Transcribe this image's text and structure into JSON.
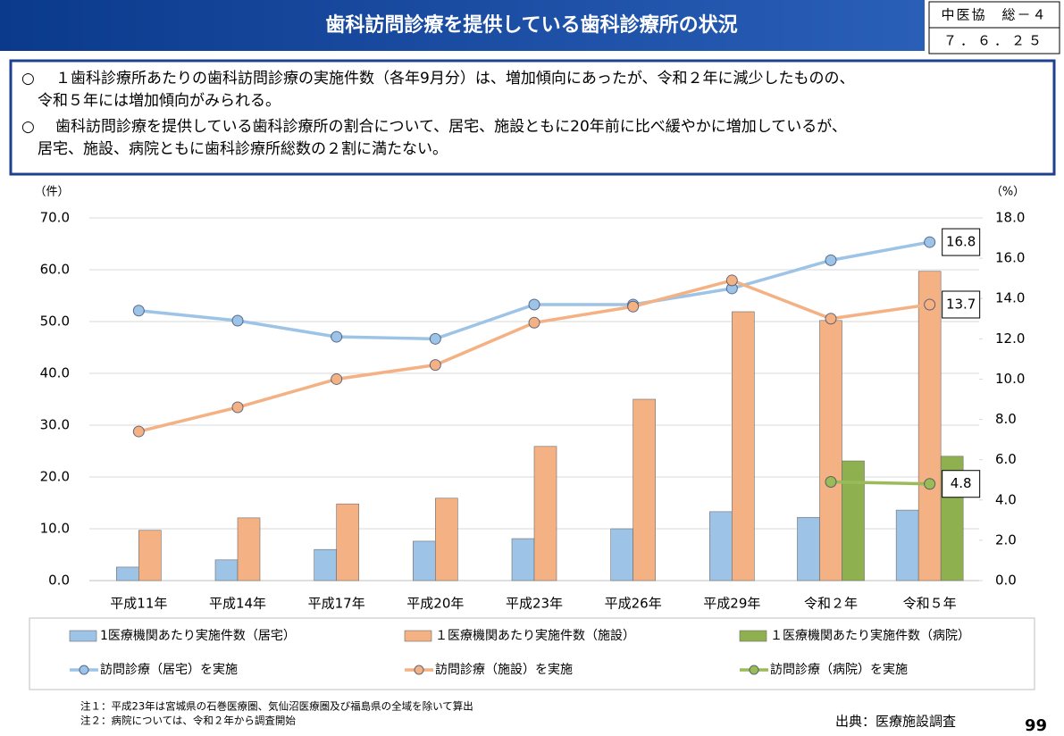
{
  "header": {
    "title": "歯科訪問診療を提供している歯科診療所の状況",
    "doc_id": "中医協　総－４",
    "date": "７．６．２５"
  },
  "bullets": [
    {
      "mark": "○",
      "lines": [
        "１歯科診療所あたりの歯科訪問診療の実施件数（各年9月分）は、増加傾向にあったが、令和２年に減少したものの、",
        "令和５年には増加傾向がみられる。"
      ]
    },
    {
      "mark": "○",
      "lines": [
        "歯科訪問診療を提供している歯科診療所の割合について、居宅、施設ともに20年前に比べ緩やかに増加しているが、",
        "居宅、施設、病院ともに歯科診療所総数の２割に満たない。"
      ]
    }
  ],
  "chart_data": {
    "type": "bar",
    "y_label": "（件）",
    "y2_label": "（%）",
    "categories": [
      "平成11年",
      "平成14年",
      "平成17年",
      "平成20年",
      "平成23年",
      "平成26年",
      "平成29年",
      "令和２年",
      "令和５年"
    ],
    "ylim": [
      0,
      70
    ],
    "yticks": [
      {
        "value": 0,
        "label": "0.0"
      },
      {
        "value": 10,
        "label": "10.0"
      },
      {
        "value": 20,
        "label": "20.0"
      },
      {
        "value": 30,
        "label": "30.0"
      },
      {
        "value": 40,
        "label": "40.0"
      },
      {
        "value": 50,
        "label": "50.0"
      },
      {
        "value": 60,
        "label": "60.0"
      },
      {
        "value": 70,
        "label": "70.0"
      }
    ],
    "y2lim": [
      0,
      18
    ],
    "y2ticks": [
      {
        "value": 0,
        "label": "0.0"
      },
      {
        "value": 2,
        "label": "2.0"
      },
      {
        "value": 4,
        "label": "4.0"
      },
      {
        "value": 6,
        "label": "6.0"
      },
      {
        "value": 8,
        "label": "8.0"
      },
      {
        "value": 10,
        "label": "10.0"
      },
      {
        "value": 12,
        "label": "12.0"
      },
      {
        "value": 14,
        "label": "14.0"
      },
      {
        "value": 16,
        "label": "16.0"
      },
      {
        "value": 18,
        "label": "18.0"
      }
    ],
    "grid": true,
    "series": [
      {
        "name": "1医療機関あたり実施件数（居宅）",
        "type": "bar",
        "axis": "y",
        "color": "#9dc3e6",
        "values": [
          2.6,
          4.0,
          6.0,
          7.6,
          8.1,
          10.0,
          13.3,
          12.2,
          13.6
        ]
      },
      {
        "name": "１医療機関あたり実施件数（施設）",
        "type": "bar",
        "axis": "y",
        "color": "#f4b183",
        "values": [
          9.7,
          12.1,
          14.8,
          15.9,
          25.9,
          35.0,
          51.9,
          50.2,
          59.7
        ]
      },
      {
        "name": "１医療機関あたり実施件数（病院）",
        "type": "bar",
        "axis": "y",
        "color": "#8fb04f",
        "values": [
          null,
          null,
          null,
          null,
          null,
          null,
          null,
          23.1,
          24.0
        ]
      },
      {
        "name": "訪問診療（居宅）を実施",
        "type": "line",
        "axis": "y2",
        "color": "#9dc3e6",
        "values": [
          13.4,
          12.9,
          12.1,
          12.0,
          13.7,
          13.7,
          14.5,
          15.9,
          16.8
        ]
      },
      {
        "name": "訪問診療（施設）を実施",
        "type": "line",
        "axis": "y2",
        "color": "#f4b183",
        "values": [
          7.4,
          8.6,
          10.0,
          10.7,
          12.8,
          13.6,
          14.9,
          13.0,
          13.7
        ]
      },
      {
        "name": "訪問診療（病院）を実施",
        "type": "line",
        "axis": "y2",
        "color": "#9bbb59",
        "values": [
          null,
          null,
          null,
          null,
          null,
          null,
          null,
          4.9,
          4.8
        ]
      }
    ]
  },
  "notes": [
    "注１：平成23年は宮城県の石巻医療圏、気仙沼医療圏及び福島県の全域を除いて算出",
    "注２：病院については、令和２年から調査開始"
  ],
  "source": "出典：医療施設調査",
  "page": "99"
}
